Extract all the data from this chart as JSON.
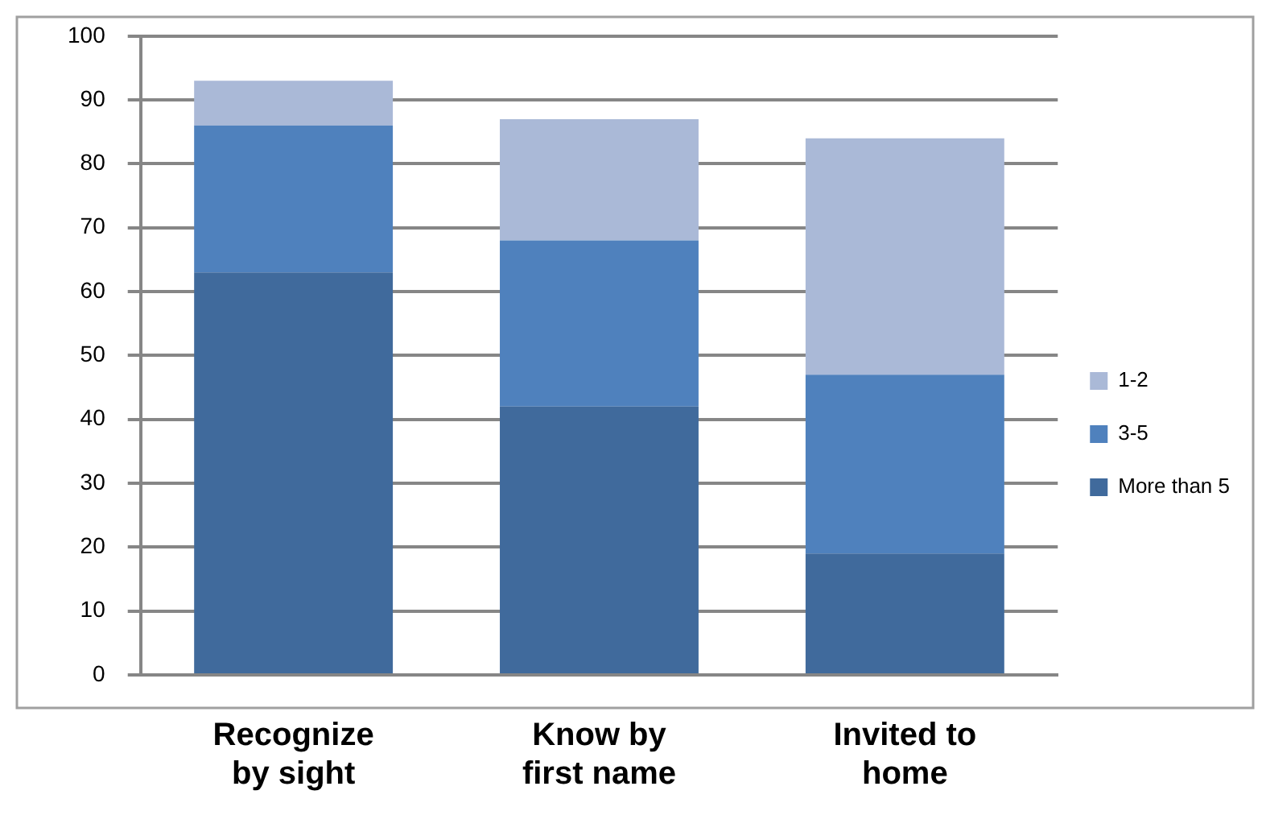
{
  "chart_data": {
    "type": "bar",
    "stacked": true,
    "categories": [
      "Recognize by sight",
      "Know by first name",
      "Invited to home"
    ],
    "series": [
      {
        "name": "More than 5",
        "color": "#406a9c",
        "values": [
          63,
          42,
          19
        ]
      },
      {
        "name": "3-5",
        "color": "#4f81bd",
        "values": [
          23,
          26,
          28
        ]
      },
      {
        "name": "1-2",
        "color": "#aab9d7",
        "values": [
          7,
          19,
          37
        ]
      }
    ],
    "ylim": [
      0,
      100
    ],
    "yticks": [
      0,
      10,
      20,
      30,
      40,
      50,
      60,
      70,
      80,
      90,
      100
    ],
    "grid": "y",
    "legend": "right"
  }
}
